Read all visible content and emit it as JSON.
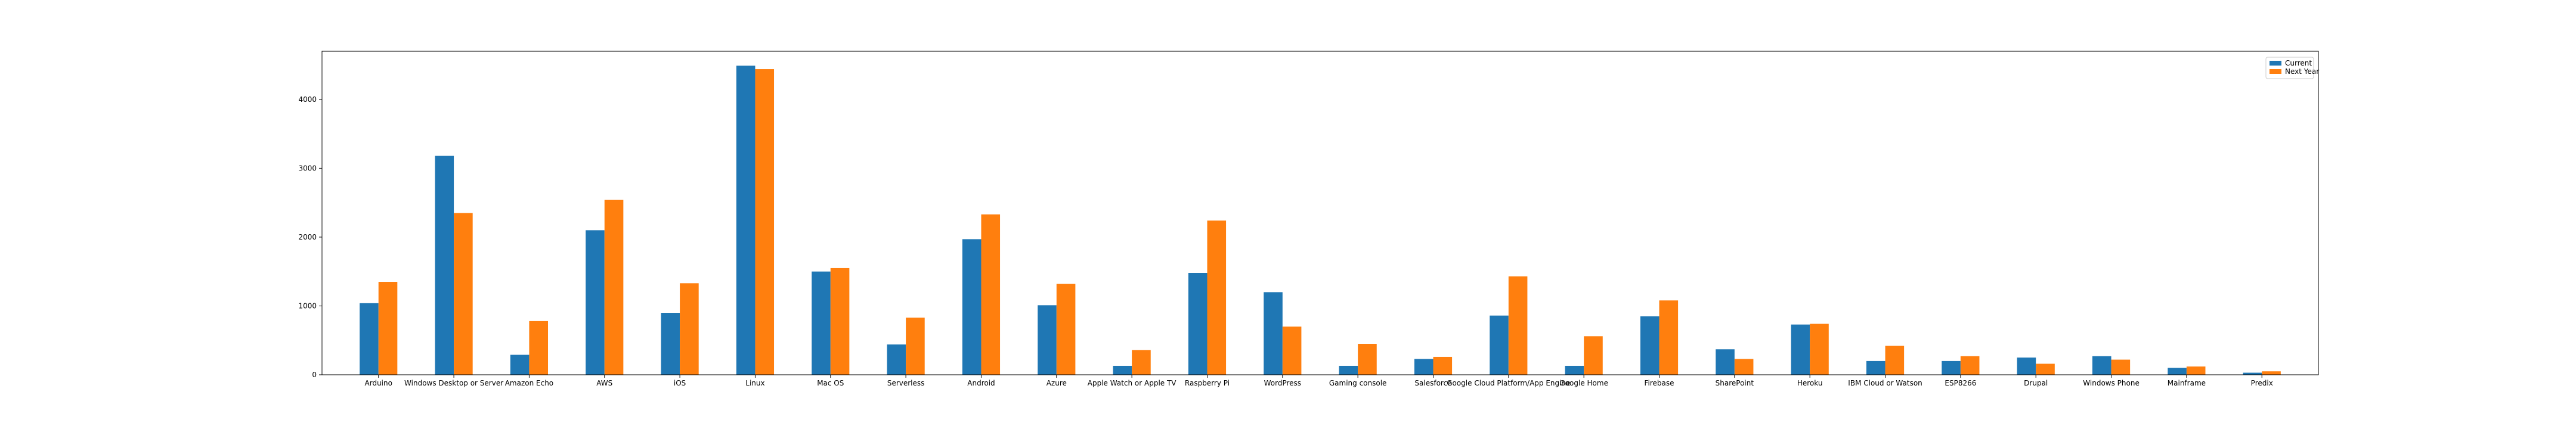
{
  "chart_data": {
    "type": "bar",
    "title": "",
    "xlabel": "",
    "ylabel": "",
    "ylim": [
      0,
      4700
    ],
    "yticks": [
      0,
      1000,
      2000,
      3000,
      4000
    ],
    "grid": false,
    "legend_position": "top-right",
    "categories": [
      "Arduino",
      "Windows Desktop or Server",
      "Amazon Echo",
      "AWS",
      "iOS",
      "Linux",
      "Mac OS",
      "Serverless",
      "Android",
      "Azure",
      "Apple Watch or Apple TV",
      "Raspberry Pi",
      "WordPress",
      "Gaming console",
      "Salesforce",
      "Google Cloud Platform/App Engine",
      "Google Home",
      "Firebase",
      "SharePoint",
      "Heroku",
      "IBM Cloud or Watson",
      "ESP8266",
      "Drupal",
      "Windows Phone",
      "Mainframe",
      "Predix"
    ],
    "series": [
      {
        "name": "Current",
        "color": "#1f77b4",
        "values": [
          1040,
          3180,
          290,
          2100,
          900,
          4490,
          1500,
          440,
          1970,
          1010,
          130,
          1480,
          1200,
          130,
          230,
          860,
          130,
          850,
          370,
          730,
          200,
          200,
          250,
          270,
          100,
          30
        ]
      },
      {
        "name": "Next Year",
        "color": "#ff7f0e",
        "values": [
          1350,
          2350,
          780,
          2540,
          1330,
          4440,
          1550,
          830,
          2330,
          1320,
          360,
          2240,
          700,
          450,
          260,
          1430,
          560,
          1080,
          230,
          740,
          420,
          270,
          160,
          220,
          120,
          50
        ]
      }
    ]
  }
}
